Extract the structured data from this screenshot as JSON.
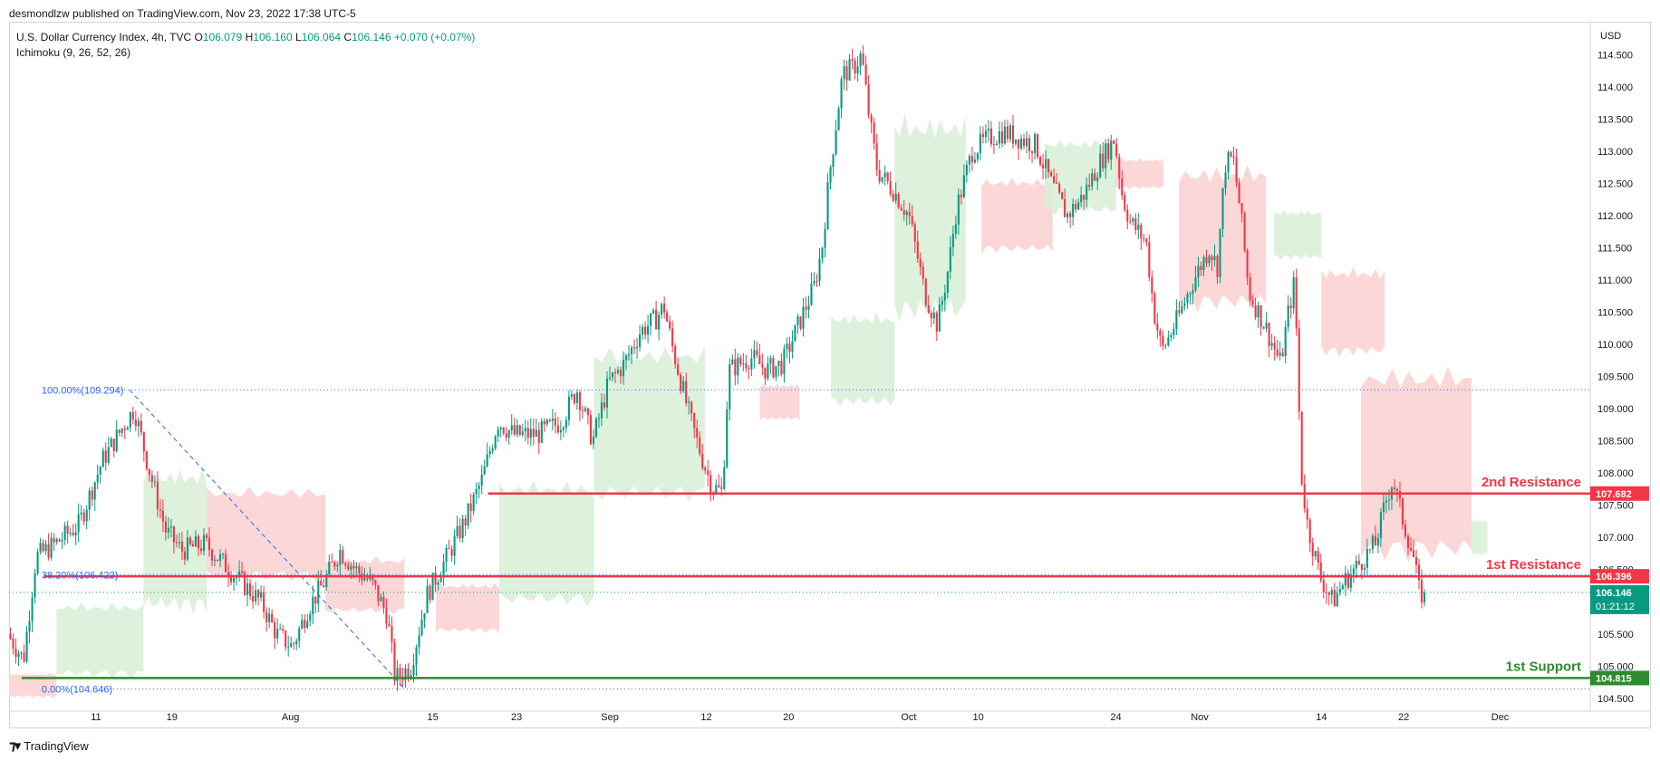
{
  "publisher": "desmondlzw published on TradingView.com, Nov 23, 2022 17:38 UTC-5",
  "legend": {
    "symbol": "U.S. Dollar Currency Index, 4h, TVC",
    "open_label": "O",
    "open": "106.079",
    "high_label": "H",
    "high": "106.160",
    "low_label": "L",
    "low": "106.064",
    "close_label": "C",
    "close": "106.146",
    "change": "+0.070 (+0.07%)",
    "indicator": "Ichimoku (9, 26, 52, 26)"
  },
  "currency": "USD",
  "footer": {
    "logo_icon": "tradingview-logo-icon",
    "brand": "TradingView"
  },
  "colors": {
    "up": "#089981",
    "down": "#f23645",
    "cloud_bull": "#d9efd9",
    "cloud_bear": "#fcd3d3",
    "resistance": "#f23645",
    "support": "#2e8b2e",
    "fib": "#2962ff",
    "price_tag": "#089981"
  },
  "chart_data": {
    "type": "candlestick",
    "timeframe": "4h",
    "y_axis": {
      "ylim": [
        104.3,
        115.0
      ],
      "ticks": [
        "104.500",
        "105.000",
        "105.500",
        "106.000",
        "106.500",
        "107.000",
        "107.500",
        "108.000",
        "108.500",
        "109.000",
        "109.500",
        "110.000",
        "110.500",
        "111.000",
        "111.500",
        "112.000",
        "112.500",
        "113.000",
        "113.500",
        "114.000",
        "114.500"
      ]
    },
    "x_axis": {
      "ticks": [
        {
          "label": "11",
          "t": 0.055
        },
        {
          "label": "19",
          "t": 0.103
        },
        {
          "label": "Aug",
          "t": 0.178
        },
        {
          "label": "15",
          "t": 0.268
        },
        {
          "label": "23",
          "t": 0.321
        },
        {
          "label": "Sep",
          "t": 0.38
        },
        {
          "label": "12",
          "t": 0.441
        },
        {
          "label": "20",
          "t": 0.493
        },
        {
          "label": "Oct",
          "t": 0.569
        },
        {
          "label": "10",
          "t": 0.613
        },
        {
          "label": "24",
          "t": 0.7
        },
        {
          "label": "Nov",
          "t": 0.753
        },
        {
          "label": "14",
          "t": 0.83
        },
        {
          "label": "22",
          "t": 0.882
        },
        {
          "label": "Dec",
          "t": 0.943
        }
      ]
    },
    "price_path": [
      [
        0.0,
        105.5
      ],
      [
        0.01,
        105.1
      ],
      [
        0.018,
        106.7
      ],
      [
        0.03,
        106.9
      ],
      [
        0.045,
        107.2
      ],
      [
        0.06,
        108.2
      ],
      [
        0.075,
        108.8
      ],
      [
        0.08,
        109.0
      ],
      [
        0.09,
        108.0
      ],
      [
        0.1,
        107.1
      ],
      [
        0.11,
        106.8
      ],
      [
        0.125,
        106.9
      ],
      [
        0.14,
        106.5
      ],
      [
        0.16,
        106.0
      ],
      [
        0.17,
        105.5
      ],
      [
        0.18,
        105.3
      ],
      [
        0.19,
        105.9
      ],
      [
        0.2,
        106.3
      ],
      [
        0.21,
        106.8
      ],
      [
        0.22,
        106.5
      ],
      [
        0.23,
        106.3
      ],
      [
        0.24,
        105.8
      ],
      [
        0.245,
        104.8
      ],
      [
        0.255,
        105.0
      ],
      [
        0.265,
        106.1
      ],
      [
        0.28,
        106.8
      ],
      [
        0.29,
        107.3
      ],
      [
        0.3,
        107.9
      ],
      [
        0.31,
        108.8
      ],
      [
        0.32,
        108.6
      ],
      [
        0.335,
        108.6
      ],
      [
        0.35,
        108.8
      ],
      [
        0.36,
        109.3
      ],
      [
        0.37,
        108.5
      ],
      [
        0.38,
        109.4
      ],
      [
        0.39,
        109.7
      ],
      [
        0.4,
        110.2
      ],
      [
        0.41,
        110.4
      ],
      [
        0.415,
        110.6
      ],
      [
        0.42,
        110.0
      ],
      [
        0.43,
        109.0
      ],
      [
        0.437,
        108.4
      ],
      [
        0.445,
        107.8
      ],
      [
        0.452,
        107.7
      ],
      [
        0.456,
        109.6
      ],
      [
        0.47,
        109.8
      ],
      [
        0.48,
        109.6
      ],
      [
        0.49,
        109.7
      ],
      [
        0.5,
        110.3
      ],
      [
        0.51,
        110.9
      ],
      [
        0.515,
        111.5
      ],
      [
        0.52,
        112.7
      ],
      [
        0.528,
        114.2
      ],
      [
        0.535,
        114.3
      ],
      [
        0.54,
        114.5
      ],
      [
        0.545,
        113.5
      ],
      [
        0.55,
        112.7
      ],
      [
        0.56,
        112.4
      ],
      [
        0.57,
        112.0
      ],
      [
        0.58,
        110.8
      ],
      [
        0.588,
        110.3
      ],
      [
        0.595,
        111.2
      ],
      [
        0.6,
        112.1
      ],
      [
        0.61,
        113.0
      ],
      [
        0.62,
        113.2
      ],
      [
        0.63,
        113.3
      ],
      [
        0.64,
        113.2
      ],
      [
        0.65,
        113.1
      ],
      [
        0.66,
        112.5
      ],
      [
        0.67,
        112.0
      ],
      [
        0.68,
        112.3
      ],
      [
        0.69,
        112.8
      ],
      [
        0.7,
        113.2
      ],
      [
        0.705,
        112.3
      ],
      [
        0.71,
        111.9
      ],
      [
        0.72,
        111.6
      ],
      [
        0.725,
        110.5
      ],
      [
        0.73,
        109.9
      ],
      [
        0.74,
        110.4
      ],
      [
        0.75,
        111.0
      ],
      [
        0.76,
        111.5
      ],
      [
        0.765,
        111.2
      ],
      [
        0.77,
        112.8
      ],
      [
        0.775,
        112.9
      ],
      [
        0.78,
        112.0
      ],
      [
        0.785,
        110.8
      ],
      [
        0.795,
        110.3
      ],
      [
        0.805,
        109.7
      ],
      [
        0.81,
        110.5
      ],
      [
        0.814,
        111.0
      ],
      [
        0.818,
        108.0
      ],
      [
        0.822,
        107.2
      ],
      [
        0.83,
        106.4
      ],
      [
        0.838,
        106.0
      ],
      [
        0.845,
        106.3
      ],
      [
        0.855,
        106.6
      ],
      [
        0.865,
        106.9
      ],
      [
        0.872,
        107.6
      ],
      [
        0.876,
        107.9
      ],
      [
        0.882,
        107.3
      ],
      [
        0.889,
        106.7
      ],
      [
        0.893,
        106.1
      ],
      [
        0.896,
        106.146
      ]
    ],
    "cloud_segments": [
      {
        "type": "bear",
        "t0": 0.0,
        "t1": 0.03,
        "y": [
          104.5,
          104.9
        ]
      },
      {
        "type": "bull",
        "t0": 0.03,
        "t1": 0.085,
        "y": [
          104.8,
          106.0
        ]
      },
      {
        "type": "bull",
        "t0": 0.085,
        "t1": 0.125,
        "y": [
          105.8,
          108.1
        ]
      },
      {
        "type": "bear",
        "t0": 0.125,
        "t1": 0.2,
        "y": [
          106.3,
          107.8
        ]
      },
      {
        "type": "bear",
        "t0": 0.2,
        "t1": 0.25,
        "y": [
          105.8,
          106.7
        ]
      },
      {
        "type": "bear",
        "t0": 0.27,
        "t1": 0.31,
        "y": [
          105.5,
          106.3
        ]
      },
      {
        "type": "bull",
        "t0": 0.31,
        "t1": 0.37,
        "y": [
          105.9,
          107.9
        ]
      },
      {
        "type": "bull",
        "t0": 0.37,
        "t1": 0.44,
        "y": [
          107.5,
          110.0
        ]
      },
      {
        "type": "bear",
        "t0": 0.475,
        "t1": 0.5,
        "y": [
          108.8,
          109.4
        ]
      },
      {
        "type": "bull",
        "t0": 0.52,
        "t1": 0.56,
        "y": [
          109.0,
          110.5
        ]
      },
      {
        "type": "bull",
        "t0": 0.56,
        "t1": 0.605,
        "y": [
          110.3,
          113.6
        ]
      },
      {
        "type": "bear",
        "t0": 0.615,
        "t1": 0.66,
        "y": [
          111.4,
          112.6
        ]
      },
      {
        "type": "bull",
        "t0": 0.655,
        "t1": 0.7,
        "y": [
          112.0,
          113.2
        ]
      },
      {
        "type": "bear",
        "t0": 0.7,
        "t1": 0.73,
        "y": [
          112.4,
          112.9
        ]
      },
      {
        "type": "bear",
        "t0": 0.74,
        "t1": 0.795,
        "y": [
          110.5,
          112.8
        ]
      },
      {
        "type": "bull",
        "t0": 0.8,
        "t1": 0.83,
        "y": [
          111.3,
          112.1
        ]
      },
      {
        "type": "bear",
        "t0": 0.83,
        "t1": 0.87,
        "y": [
          109.8,
          111.2
        ]
      },
      {
        "type": "bear",
        "t0": 0.855,
        "t1": 0.925,
        "y": [
          106.6,
          109.7
        ]
      },
      {
        "type": "bull",
        "t0": 0.925,
        "t1": 0.935,
        "y": [
          106.7,
          107.3
        ]
      }
    ],
    "levels": [
      {
        "name": "2nd Resistance",
        "label": "2nd Resistance",
        "value": 107.682,
        "tag": "107.682",
        "color": "#f23645",
        "t0": 0.303
      },
      {
        "name": "1st Resistance",
        "label": "1st Resistance",
        "value": 106.396,
        "tag": "106.396",
        "color": "#f23645",
        "t0": 0.022
      },
      {
        "name": "1st Support",
        "label": "1st Support",
        "value": 104.815,
        "tag": "104.815",
        "color": "#2e8b2e",
        "t0": 0.008
      }
    ],
    "fibonacci": {
      "levels": [
        {
          "label": "100.00%(109.294)",
          "value": 109.294
        },
        {
          "label": "38.20%(106.422)",
          "value": 106.422
        },
        {
          "label": "0.00%(104.646)",
          "value": 104.646
        }
      ],
      "t0": 0.075,
      "t1": 0.248
    },
    "current_price": {
      "value": 106.146,
      "label": "106.146",
      "countdown": "01:21:12"
    }
  }
}
